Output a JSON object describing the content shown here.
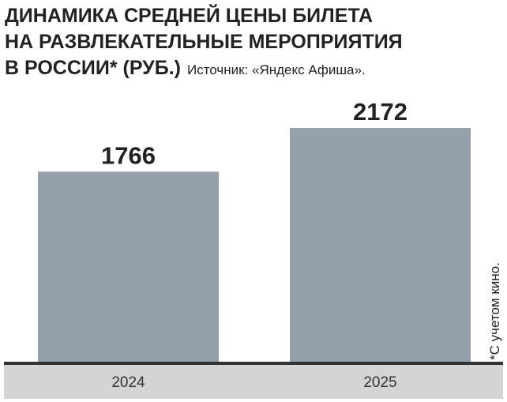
{
  "chart_data": {
    "type": "bar",
    "title": [
      "ДИНАМИКА СРЕДНЕЙ ЦЕНЫ БИЛЕТА",
      "НА РАЗВЛЕКАТЕЛЬНЫЕ МЕРОПРИЯТИЯ",
      "В РОССИИ* (РУБ.)"
    ],
    "source": "Источник: «Яндекс Афиша».",
    "note": "*С учетом кино.",
    "categories": [
      "2024",
      "2025"
    ],
    "values": [
      1766,
      2172
    ],
    "color": "#95a1aa"
  }
}
